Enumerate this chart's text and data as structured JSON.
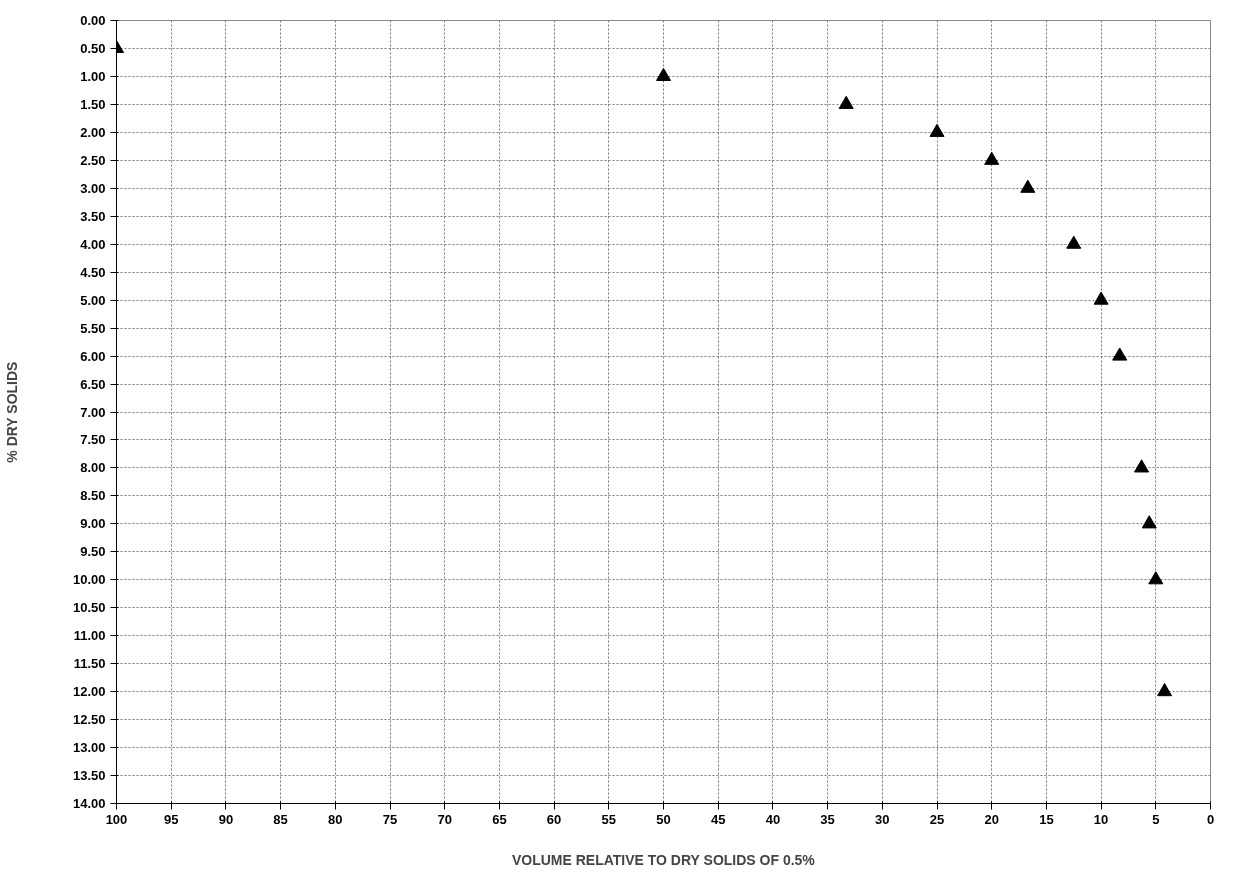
{
  "chart_data": {
    "type": "scatter",
    "xlabel": "VOLUME RELATIVE TO DRY SOLIDS OF 0.5%",
    "ylabel": "% DRY SOLIDS",
    "x": [
      100,
      50,
      33.3,
      25,
      20,
      16.7,
      12.5,
      10,
      8.3,
      6.3,
      5.6,
      5,
      4.2
    ],
    "series": [
      {
        "color": "#000000",
        "values": [
          0.5,
          1,
          1.5,
          2,
          2.5,
          3,
          4,
          5,
          6,
          8,
          9,
          10,
          12
        ]
      }
    ],
    "xlim": [
      100,
      0
    ],
    "xticks": [
      100,
      95,
      90,
      85,
      80,
      75,
      70,
      65,
      60,
      55,
      50,
      45,
      40,
      35,
      30,
      25,
      20,
      15,
      10,
      5,
      0
    ],
    "ylim": [
      14,
      0
    ],
    "yticks": [
      {
        "value": 0,
        "label": "0.00"
      },
      {
        "value": 0.5,
        "label": "0.50"
      },
      {
        "value": 1,
        "label": "1.00"
      },
      {
        "value": 1.5,
        "label": "1.50"
      },
      {
        "value": 2,
        "label": "2.00"
      },
      {
        "value": 2.5,
        "label": "2.50"
      },
      {
        "value": 3,
        "label": "3.00"
      },
      {
        "value": 3.5,
        "label": "3.50"
      },
      {
        "value": 4,
        "label": "4.00"
      },
      {
        "value": 4.5,
        "label": "4.50"
      },
      {
        "value": 5,
        "label": "5.00"
      },
      {
        "value": 5.5,
        "label": "5.50"
      },
      {
        "value": 6,
        "label": "6.00"
      },
      {
        "value": 6.5,
        "label": "6.50"
      },
      {
        "value": 7,
        "label": "7.00"
      },
      {
        "value": 7.5,
        "label": "7.50"
      },
      {
        "value": 8,
        "label": "8.00"
      },
      {
        "value": 8.5,
        "label": "8.50"
      },
      {
        "value": 9,
        "label": "9.00"
      },
      {
        "value": 9.5,
        "label": "9.50"
      },
      {
        "value": 10,
        "label": "10.00"
      },
      {
        "value": 10.5,
        "label": "10.50"
      },
      {
        "value": 11,
        "label": "11.00"
      },
      {
        "value": 11.5,
        "label": "11.50"
      },
      {
        "value": 12,
        "label": "12.00"
      },
      {
        "value": 12.5,
        "label": "12.50"
      },
      {
        "value": 13,
        "label": "13.00"
      },
      {
        "value": 13.5,
        "label": "13.50"
      },
      {
        "value": 14,
        "label": "14.00"
      }
    ],
    "grid": true,
    "marker": "triangle"
  }
}
